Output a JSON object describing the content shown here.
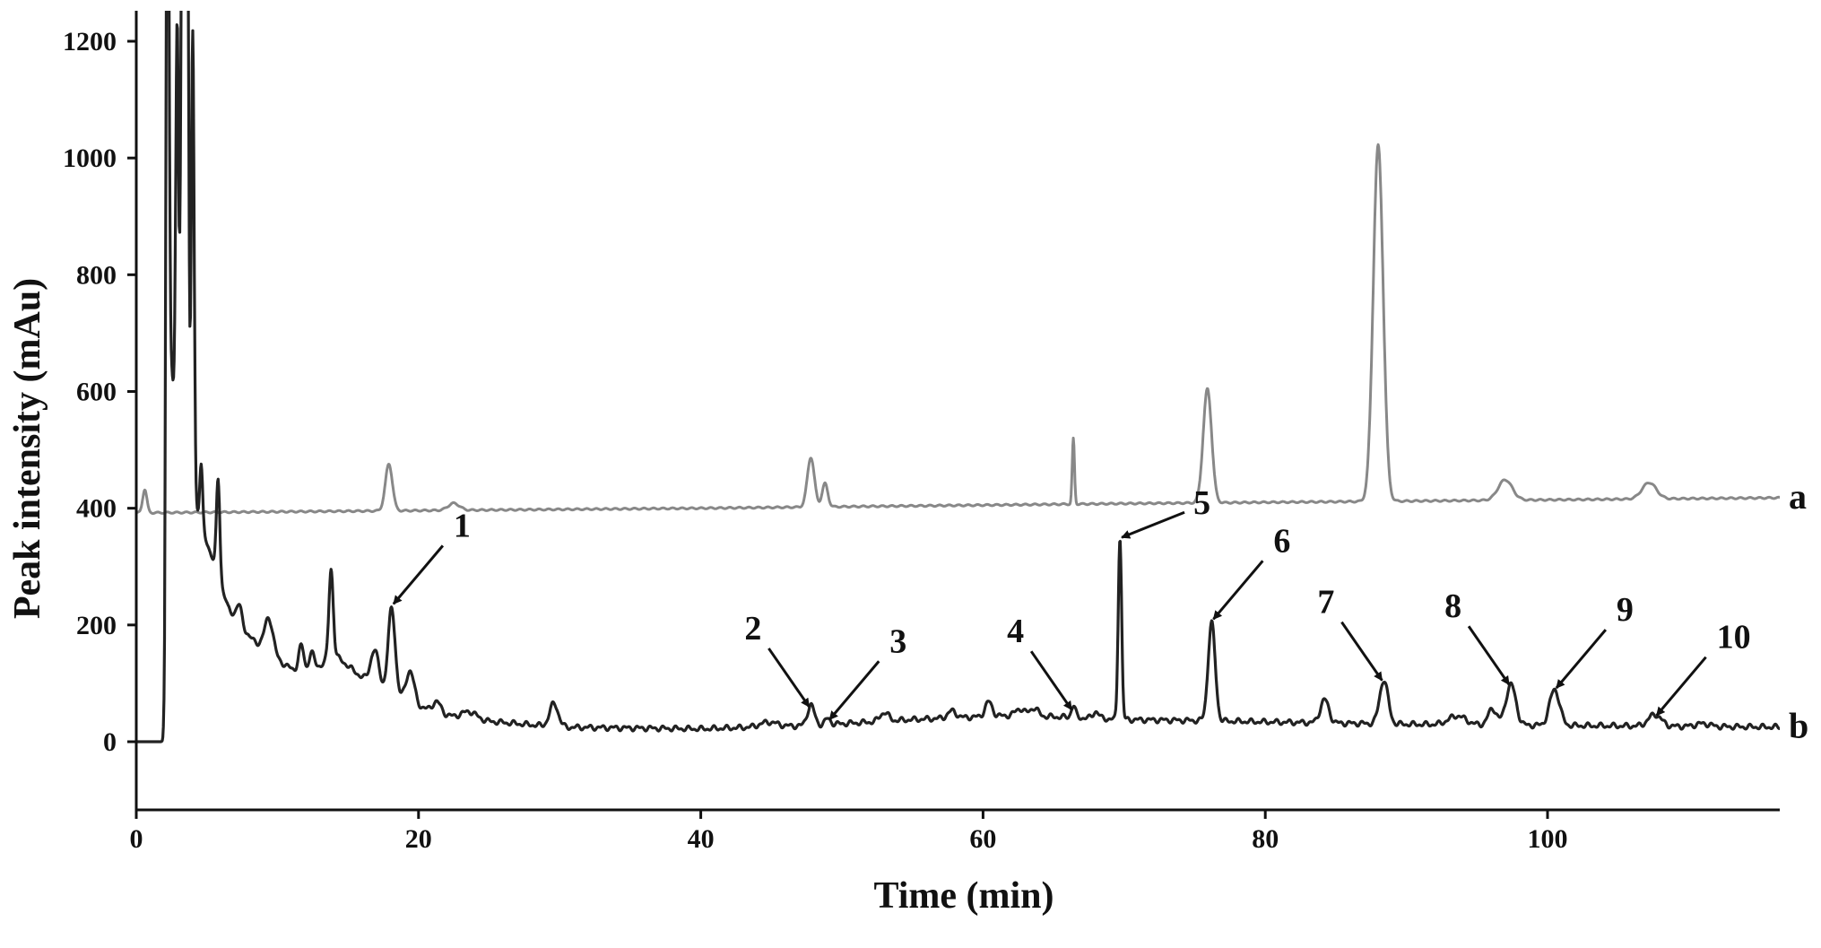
{
  "chart_data": {
    "type": "line",
    "xlabel": "Time (min)",
    "ylabel": "Peak intensity (mAu)",
    "xlim": [
      0,
      117
    ],
    "ylim": [
      -120,
      1250
    ],
    "xticks": [
      0,
      20,
      40,
      60,
      80,
      100
    ],
    "yticks": [
      0,
      200,
      400,
      600,
      800,
      1000,
      1200
    ],
    "grid": false,
    "legend": "none",
    "colors": {
      "a": "#888888",
      "b": "#222222"
    },
    "series": [
      {
        "name": "a",
        "baseline": [
          [
            0,
            392
          ],
          [
            40,
            400
          ],
          [
            70,
            408
          ],
          [
            117,
            418
          ]
        ],
        "peaks": [
          {
            "t": 0.6,
            "h": 40,
            "w": 0.15
          },
          {
            "t": 17.9,
            "h": 80,
            "w": 0.25
          },
          {
            "t": 22.5,
            "h": 12,
            "w": 0.4
          },
          {
            "t": 47.8,
            "h": 85,
            "w": 0.25
          },
          {
            "t": 48.8,
            "h": 40,
            "w": 0.2
          },
          {
            "t": 66.4,
            "h": 112,
            "w": 0.08
          },
          {
            "t": 75.9,
            "h": 195,
            "w": 0.3
          },
          {
            "t": 88.0,
            "h": 610,
            "w": 0.35
          },
          {
            "t": 97.0,
            "h": 35,
            "w": 0.5
          },
          {
            "t": 107.2,
            "h": 28,
            "w": 0.5
          }
        ]
      },
      {
        "name": "b",
        "baseline": [
          [
            0,
            0
          ],
          [
            2.0,
            0
          ],
          [
            2.3,
            700
          ],
          [
            3.0,
            500
          ],
          [
            4.5,
            380
          ],
          [
            6.5,
            230
          ],
          [
            8,
            180
          ],
          [
            10,
            140
          ],
          [
            12,
            110
          ],
          [
            14,
            150
          ],
          [
            16,
            110
          ],
          [
            18,
            80
          ],
          [
            20,
            60
          ],
          [
            22,
            45
          ],
          [
            25,
            35
          ],
          [
            30,
            25
          ],
          [
            40,
            22
          ],
          [
            48,
            28
          ],
          [
            55,
            38
          ],
          [
            62,
            45
          ],
          [
            66,
            42
          ],
          [
            70,
            38
          ],
          [
            76,
            36
          ],
          [
            80,
            34
          ],
          [
            90,
            30
          ],
          [
            100,
            28
          ],
          [
            117,
            25
          ]
        ],
        "peaks": [
          {
            "t": 2.2,
            "h": 1300,
            "w": 0.1
          },
          {
            "t": 2.9,
            "h": 700,
            "w": 0.1
          },
          {
            "t": 3.3,
            "h": 1300,
            "w": 0.12
          },
          {
            "t": 3.6,
            "h": 1200,
            "w": 0.1
          },
          {
            "t": 4.0,
            "h": 800,
            "w": 0.1
          },
          {
            "t": 4.6,
            "h": 100,
            "w": 0.1
          },
          {
            "t": 5.8,
            "h": 170,
            "w": 0.12
          },
          {
            "t": 7.3,
            "h": 30,
            "w": 0.2
          },
          {
            "t": 9.4,
            "h": 60,
            "w": 0.3
          },
          {
            "t": 11.7,
            "h": 50,
            "w": 0.2
          },
          {
            "t": 12.4,
            "h": 35,
            "w": 0.2
          },
          {
            "t": 13.8,
            "h": 150,
            "w": 0.15
          },
          {
            "t": 16.9,
            "h": 60,
            "w": 0.3
          },
          {
            "t": 18.1,
            "h": 150,
            "w": 0.25
          },
          {
            "t": 19.4,
            "h": 55,
            "w": 0.3
          },
          {
            "t": 21.3,
            "h": 18,
            "w": 0.3
          },
          {
            "t": 23.6,
            "h": 12,
            "w": 0.5
          },
          {
            "t": 29.6,
            "h": 40,
            "w": 0.3
          },
          {
            "t": 44.8,
            "h": 8,
            "w": 0.6
          },
          {
            "t": 47.8,
            "h": 35,
            "w": 0.25
          },
          {
            "t": 49.0,
            "h": 10,
            "w": 0.2
          },
          {
            "t": 53.0,
            "h": 15,
            "w": 0.3
          },
          {
            "t": 57.8,
            "h": 12,
            "w": 0.3
          },
          {
            "t": 60.4,
            "h": 25,
            "w": 0.25
          },
          {
            "t": 62.6,
            "h": 12,
            "w": 0.3
          },
          {
            "t": 63.6,
            "h": 14,
            "w": 0.3
          },
          {
            "t": 66.4,
            "h": 20,
            "w": 0.15
          },
          {
            "t": 68.0,
            "h": 12,
            "w": 0.2
          },
          {
            "t": 69.7,
            "h": 312,
            "w": 0.12
          },
          {
            "t": 76.2,
            "h": 168,
            "w": 0.25
          },
          {
            "t": 84.2,
            "h": 40,
            "w": 0.3
          },
          {
            "t": 88.4,
            "h": 75,
            "w": 0.3
          },
          {
            "t": 93.6,
            "h": 15,
            "w": 0.6
          },
          {
            "t": 96.1,
            "h": 28,
            "w": 0.3
          },
          {
            "t": 97.4,
            "h": 70,
            "w": 0.35
          },
          {
            "t": 100.5,
            "h": 62,
            "w": 0.35
          },
          {
            "t": 107.6,
            "h": 20,
            "w": 0.45
          },
          {
            "t": 111.0,
            "h": 5,
            "w": 0.5
          }
        ]
      }
    ],
    "annotations": [
      {
        "label": "1",
        "t": 18.1,
        "y": 236,
        "dir": "NE"
      },
      {
        "label": "2",
        "t": 47.8,
        "y": 60,
        "dir": "NW"
      },
      {
        "label": "3",
        "t": 49.0,
        "y": 38,
        "dir": "NE"
      },
      {
        "label": "4",
        "t": 66.4,
        "y": 55,
        "dir": "NW"
      },
      {
        "label": "5",
        "t": 69.7,
        "y": 350,
        "dir": "E"
      },
      {
        "label": "6",
        "t": 76.2,
        "y": 210,
        "dir": "NE"
      },
      {
        "label": "7",
        "t": 88.4,
        "y": 105,
        "dir": "NW"
      },
      {
        "label": "8",
        "t": 97.4,
        "y": 98,
        "dir": "NW"
      },
      {
        "label": "9",
        "t": 100.5,
        "y": 92,
        "dir": "NE"
      },
      {
        "label": "10",
        "t": 107.6,
        "y": 45,
        "dir": "NE"
      }
    ]
  }
}
